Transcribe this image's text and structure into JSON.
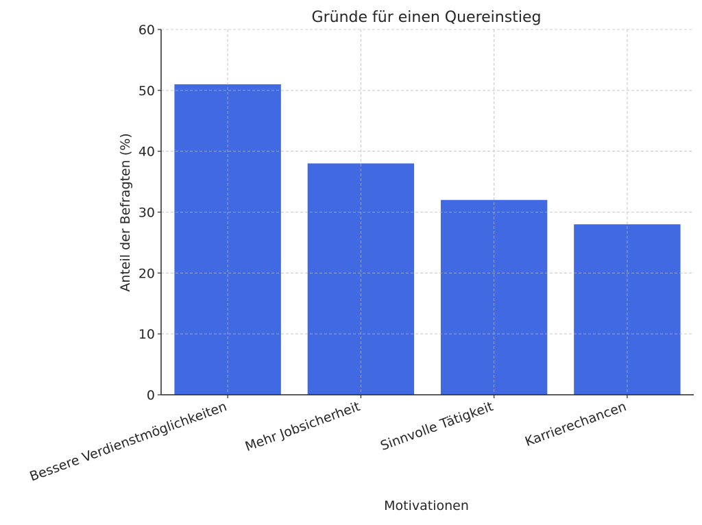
{
  "chart_data": {
    "type": "bar",
    "title": "Gründe für einen Quereinstieg",
    "xlabel": "Motivationen",
    "ylabel": "Anteil der Befragten (%)",
    "categories": [
      "Bessere Verdienstmöglichkeiten",
      "Mehr Jobsicherheit",
      "Sinnvolle Tätigkeit",
      "Karrierechancen"
    ],
    "values": [
      51,
      38,
      32,
      28
    ],
    "ylim": [
      0,
      60
    ],
    "yticks": [
      0,
      10,
      20,
      30,
      40,
      50,
      60
    ],
    "grid": true,
    "bar_color": "#4169e1",
    "legend": null
  }
}
